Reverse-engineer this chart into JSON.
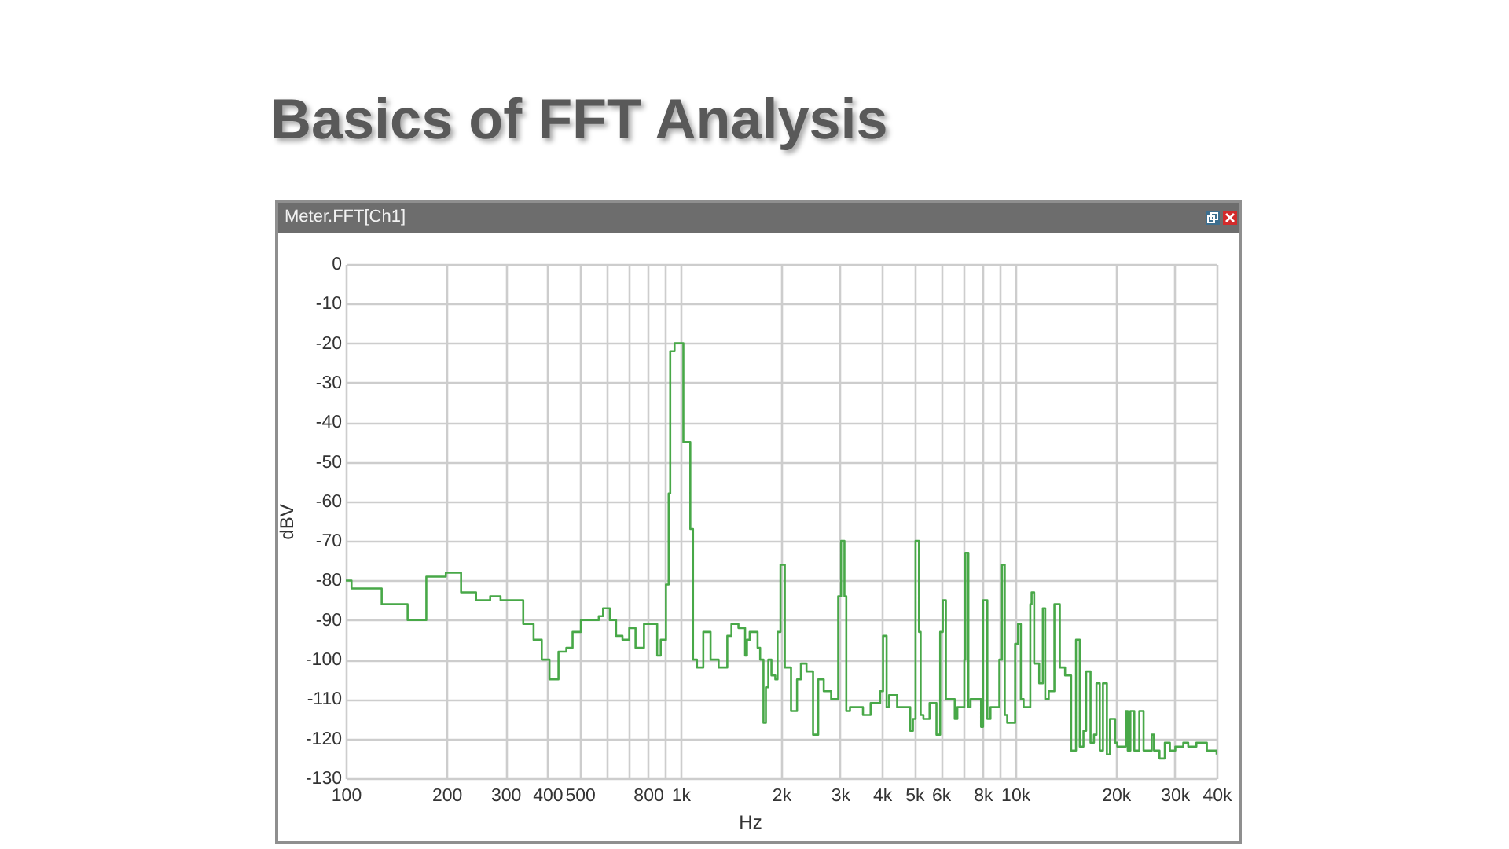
{
  "chart_data": {
    "type": "step",
    "title": "Basics of FFT Analysis",
    "subtitle": "Meter.FFT[Ch1]",
    "xlabel": "Hz",
    "ylabel": "dBV",
    "log": "x",
    "grid": true,
    "xlim": [
      100,
      40000
    ],
    "ylim": [
      -130,
      0
    ],
    "xticks": [
      100,
      200,
      300,
      400,
      500,
      {
        "value": 600,
        "label": null
      },
      {
        "value": 700,
        "label": null
      },
      800,
      {
        "value": 900,
        "label": null
      },
      {
        "value": 1000,
        "label": "1k"
      },
      {
        "value": 2000,
        "label": "2k"
      },
      {
        "value": 3000,
        "label": "3k"
      },
      {
        "value": 4000,
        "label": "4k"
      },
      {
        "value": 5000,
        "label": "5k"
      },
      {
        "value": 6000,
        "label": "6k"
      },
      {
        "value": 7000,
        "label": null
      },
      {
        "value": 8000,
        "label": "8k"
      },
      {
        "value": 9000,
        "label": null
      },
      {
        "value": 10000,
        "label": "10k"
      },
      {
        "value": 20000,
        "label": "20k"
      },
      {
        "value": 30000,
        "label": "30k"
      },
      {
        "value": 40000,
        "label": "40k"
      }
    ],
    "yticks": [
      0,
      -10,
      -20,
      -30,
      -40,
      -50,
      -60,
      -70,
      -80,
      -90,
      -100,
      -110,
      -120,
      -130
    ],
    "x": [
      100,
      104,
      128,
      153,
      174,
      199,
      221,
      245,
      270,
      290,
      339,
      364,
      385,
      406,
      432,
      456,
      476,
      504,
      570,
      587,
      615,
      642,
      671,
      703,
      734,
      778,
      852,
      873,
      905,
      922,
      932,
      960,
      1020,
      1070,
      1090,
      1120,
      1170,
      1230,
      1300,
      1380,
      1420,
      1490,
      1560,
      1580,
      1610,
      1700,
      1730,
      1770,
      1800,
      1830,
      1870,
      1920,
      1950,
      1990,
      2050,
      2140,
      2230,
      2290,
      2380,
      2490,
      2580,
      2680,
      2820,
      2960,
      3020,
      3090,
      3130,
      3210,
      3510,
      3700,
      3950,
      4030,
      4130,
      4200,
      4440,
      4860,
      4950,
      5040,
      5160,
      5220,
      5320,
      5550,
      5820,
      5970,
      6080,
      6210,
      6600,
      6720,
      7050,
      7100,
      7250,
      7360,
      7910,
      8020,
      8260,
      8440,
      8970,
      9140,
      9310,
      9470,
      10000,
      10200,
      10400,
      10600,
      11100,
      11200,
      11400,
      11800,
      12100,
      12300,
      12600,
      13100,
      13600,
      14100,
      14700,
      15200,
      15600,
      16000,
      16300,
      16800,
      17200,
      17500,
      17900,
      18300,
      18800,
      19200,
      19900,
      20200,
      21400,
      21700,
      22100,
      22700,
      23500,
      24200,
      25600,
      26000,
      27000,
      28000,
      29000,
      30100,
      31800,
      32900,
      34800,
      36100,
      37400,
      38700,
      40000
    ],
    "series": [
      {
        "color": "#48a848",
        "values": [
          -80,
          -82,
          -86,
          -90,
          -79,
          -78,
          -83,
          -85,
          -84,
          -85,
          -91,
          -95,
          -100,
          -105,
          -98,
          -97,
          -93,
          -90,
          -89,
          -87,
          -90,
          -94,
          -95,
          -92,
          -97,
          -91,
          -99,
          -95,
          -81,
          -58,
          -22,
          -20,
          -45,
          -67,
          -100,
          -102,
          -93,
          -100,
          -102,
          -94,
          -91,
          -92,
          -99,
          -95,
          -93,
          -97,
          -100,
          -116,
          -107,
          -100,
          -104,
          -105,
          -93,
          -76,
          -102,
          -113,
          -105,
          -101,
          -103,
          -119,
          -105,
          -108,
          -110,
          -84,
          -70,
          -84,
          -113,
          -112,
          -114,
          -111,
          -108,
          -94,
          -112,
          -109,
          -112,
          -118,
          -115,
          -70,
          -93,
          -114,
          -115,
          -111,
          -119,
          -93,
          -85,
          -110,
          -115,
          -112,
          -100,
          -73,
          -112,
          -110,
          -117,
          -85,
          -115,
          -112,
          -100,
          -76,
          -114,
          -116,
          -96,
          -91,
          -110,
          -112,
          -86,
          -83,
          -101,
          -106,
          -87,
          -110,
          -108,
          -86,
          -102,
          -104,
          -123,
          -95,
          -122,
          -118,
          -103,
          -121,
          -119,
          -106,
          -123,
          -106,
          -124,
          -115,
          -121,
          -122,
          -113,
          -123,
          -113,
          -123,
          -113,
          -123,
          -119,
          -123,
          -125,
          -121,
          -123,
          -122,
          -121,
          -122,
          -121,
          -121,
          -123,
          -123,
          -124
        ]
      }
    ]
  }
}
